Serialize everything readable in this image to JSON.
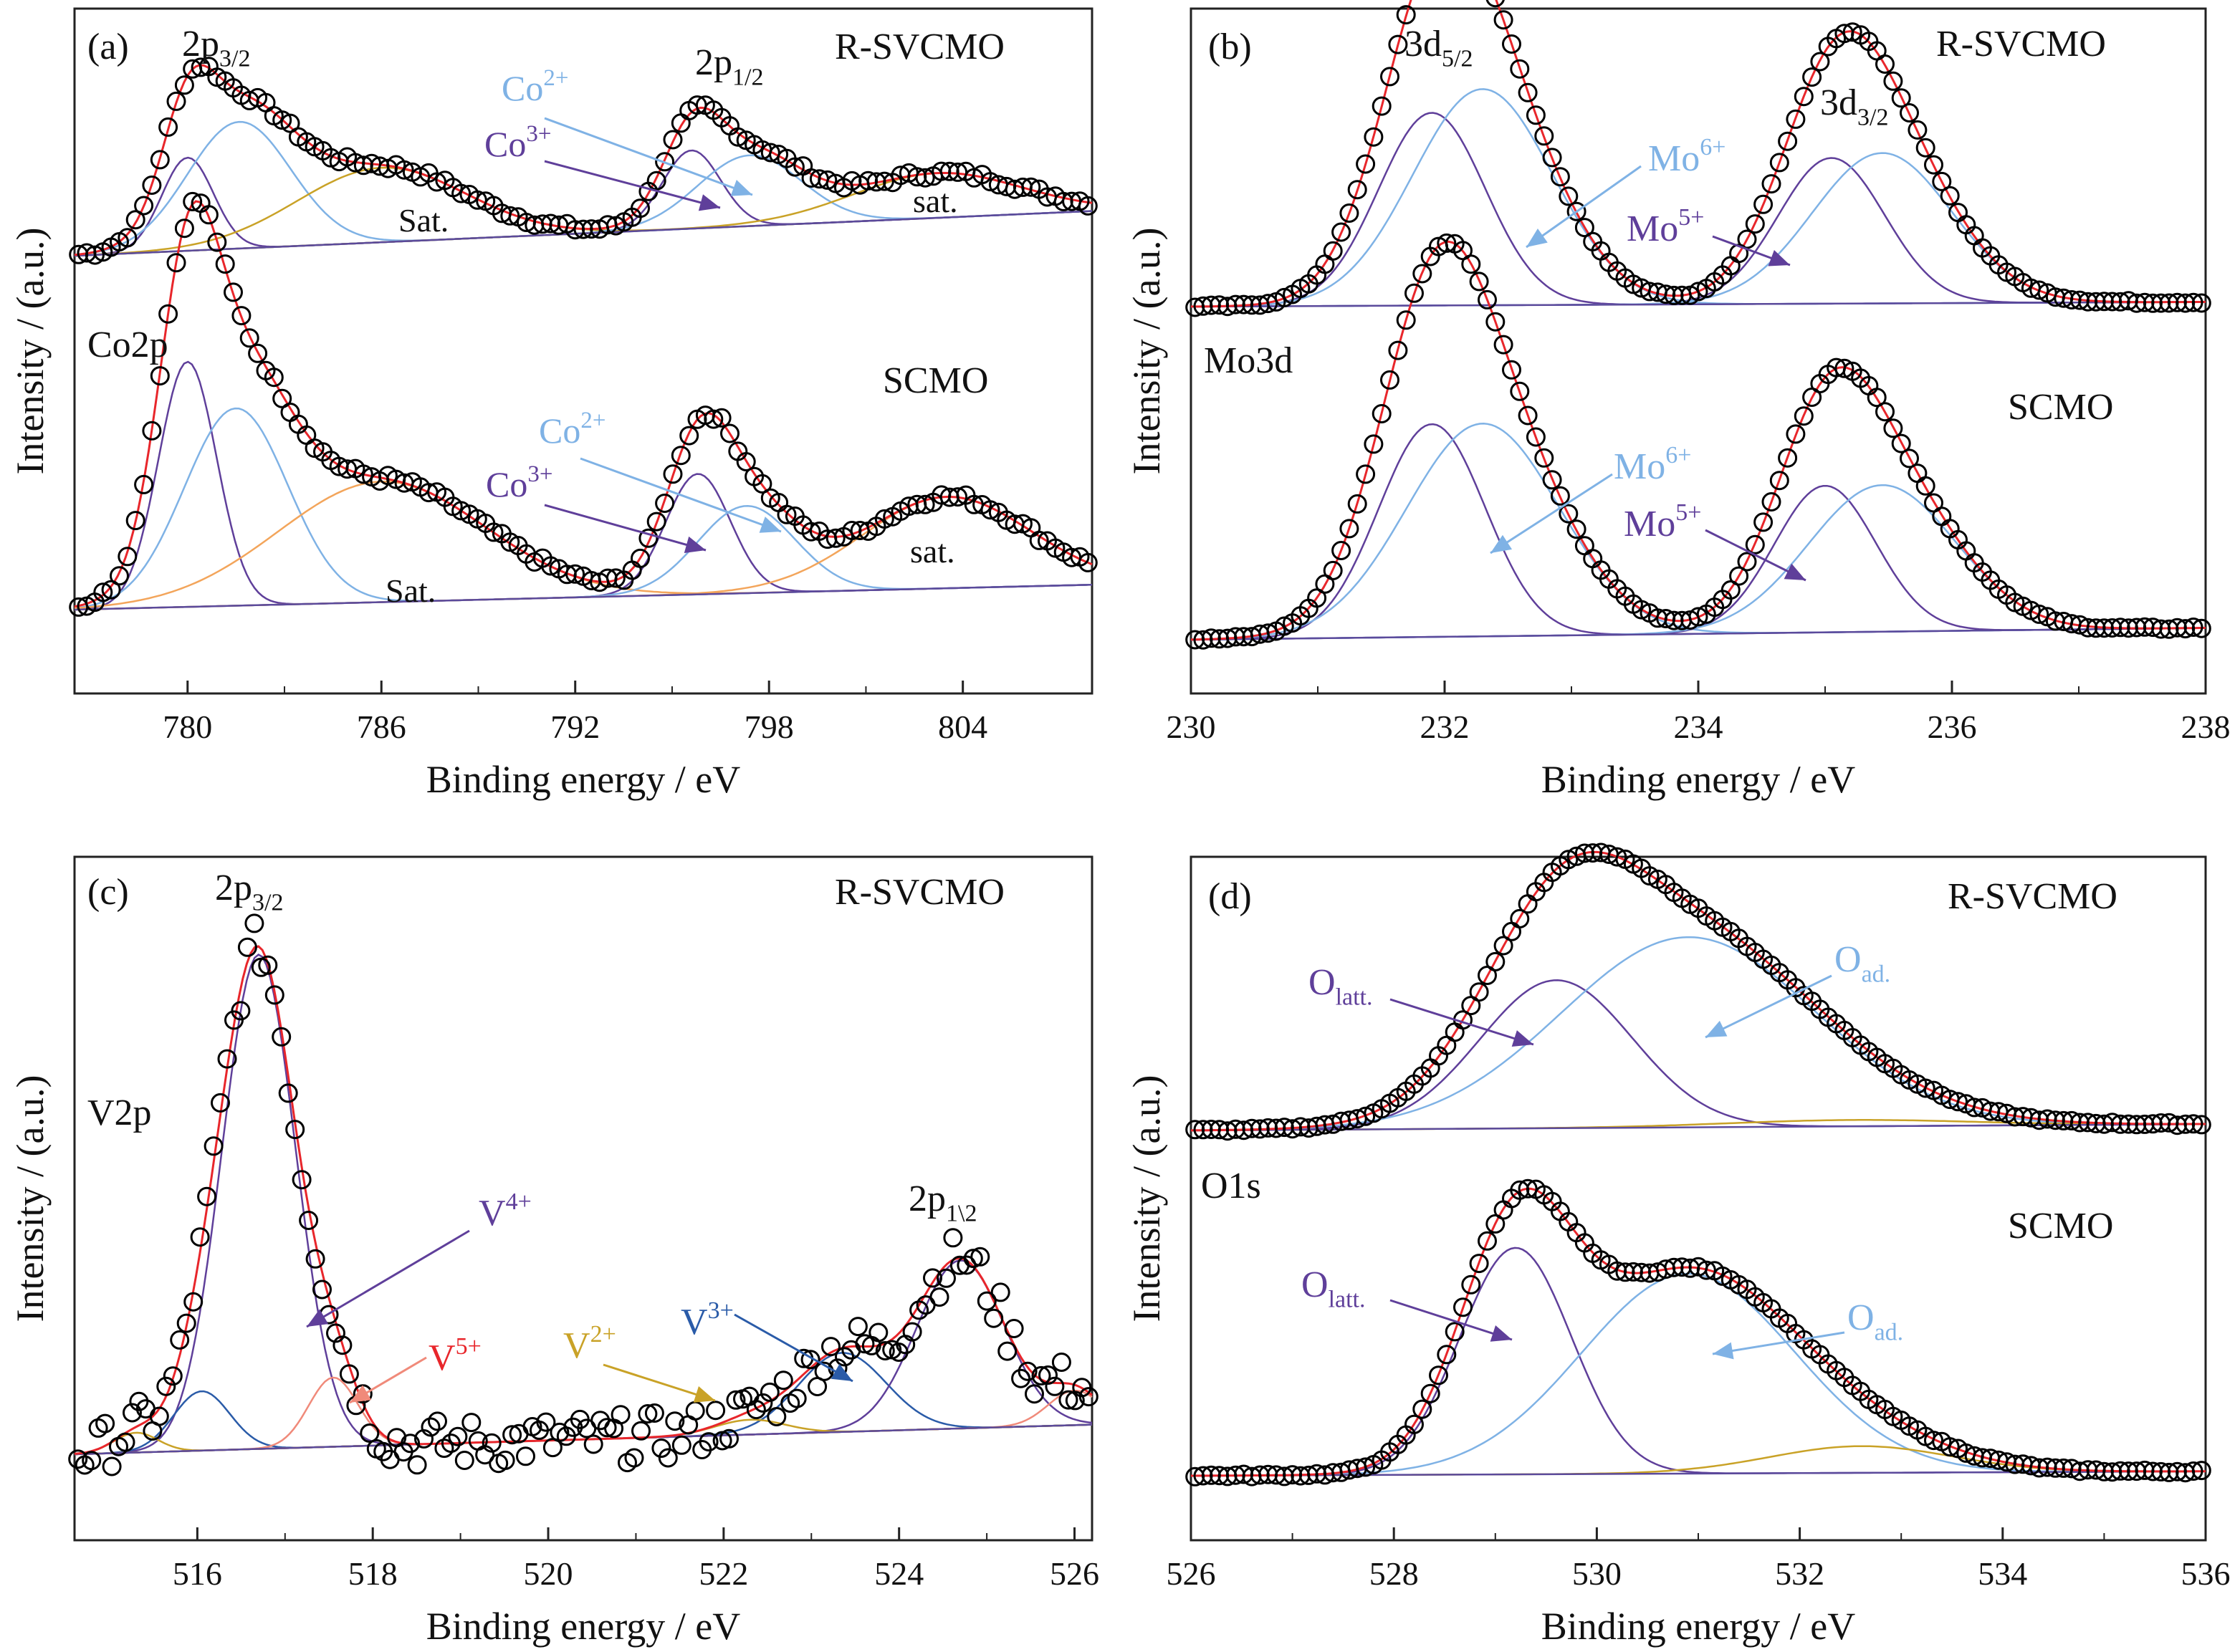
{
  "figure": {
    "y_axis_label": "Intensity / (a.u.)",
    "x_axis_label": "Binding energy / eV",
    "colors": {
      "data_markers": "#000000",
      "fit_envelope": "#e8262b",
      "purple_component": "#5f3f9a",
      "light_blue_component": "#7fb2e5",
      "dark_blue_component": "#2a5ba8",
      "gold_component": "#c9a227",
      "salmon_component": "#f08a7a",
      "orange_component": "#f3a55b",
      "baseline_purple": "#5b4a9b"
    }
  },
  "chart_data": [
    {
      "id": "a",
      "type": "scatter",
      "panel_label": "(a)",
      "element_label": "Co2p",
      "xlabel": "Binding energy / eV",
      "ylabel": "Intensity / (a.u.)",
      "xlim": [
        776.5,
        808
      ],
      "xticks": [
        780,
        786,
        792,
        798,
        804
      ],
      "spectra": [
        {
          "sample": "R-SVCMO",
          "baseline": [
            0.05,
            0.29
          ],
          "peaks": [
            {
              "label": "Co3+",
              "color": "purple",
              "center": 780.0,
              "height": 0.5,
              "width": 0.8
            },
            {
              "label": "Co2+",
              "color": "light_blue",
              "center": 781.6,
              "height": 0.68,
              "width": 1.6
            },
            {
              "label": "Sat.",
              "color": "gold",
              "center": 786.0,
              "height": 0.4,
              "width": 2.6
            },
            {
              "label": "Co3+",
              "color": "purple",
              "center": 795.6,
              "height": 0.42,
              "width": 0.9
            },
            {
              "label": "Co2+",
              "color": "light_blue",
              "center": 797.4,
              "height": 0.38,
              "width": 1.6
            },
            {
              "label": "sat.",
              "color": "gold",
              "center": 803.2,
              "height": 0.24,
              "width": 2.6
            }
          ],
          "annotations": [
            "2p3/2",
            "2p1/2",
            "Co2+",
            "Co3+",
            "Sat.",
            "sat."
          ]
        },
        {
          "sample": "SCMO",
          "baseline": [
            0.1,
            0.22
          ],
          "peaks": [
            {
              "label": "Co3+",
              "color": "purple",
              "center": 780.0,
              "height": 1.18,
              "width": 0.9
            },
            {
              "label": "Co2+",
              "color": "light_blue",
              "center": 781.5,
              "height": 0.95,
              "width": 1.6
            },
            {
              "label": "Sat.",
              "color": "orange",
              "center": 786.0,
              "height": 0.58,
              "width": 3.2
            },
            {
              "label": "Co3+",
              "color": "purple",
              "center": 795.8,
              "height": 0.58,
              "width": 1.0
            },
            {
              "label": "Co2+",
              "color": "light_blue",
              "center": 797.3,
              "height": 0.42,
              "width": 1.5
            },
            {
              "label": "sat.",
              "color": "orange",
              "center": 803.5,
              "height": 0.44,
              "width": 2.6
            }
          ],
          "annotations": [
            "Co2+",
            "Co3+",
            "Sat.",
            "sat."
          ]
        }
      ]
    },
    {
      "id": "b",
      "type": "scatter",
      "panel_label": "(b)",
      "element_label": "Mo3d",
      "xlabel": "Binding energy / eV",
      "ylabel": "Intensity / (a.u.)",
      "xlim": [
        230,
        238
      ],
      "xticks": [
        230,
        232,
        234,
        236,
        238
      ],
      "spectra": [
        {
          "sample": "R-SVCMO",
          "baseline": [
            0.0,
            0.02
          ],
          "peaks": [
            {
              "label": "Mo5+",
              "color": "purple",
              "center": 231.9,
              "height": 0.82,
              "width": 0.42
            },
            {
              "label": "Mo6+",
              "color": "light_blue",
              "center": 232.3,
              "height": 0.92,
              "width": 0.55
            },
            {
              "label": "Mo5+",
              "color": "purple",
              "center": 235.05,
              "height": 0.62,
              "width": 0.42
            },
            {
              "label": "Mo6+",
              "color": "light_blue",
              "center": 235.45,
              "height": 0.64,
              "width": 0.55
            }
          ],
          "annotations": [
            "3d5/2",
            "3d3/2",
            "Mo6+",
            "Mo5+"
          ]
        },
        {
          "sample": "SCMO",
          "baseline": [
            0.0,
            0.05
          ],
          "peaks": [
            {
              "label": "Mo5+",
              "color": "purple",
              "center": 231.9,
              "height": 0.9,
              "width": 0.42
            },
            {
              "label": "Mo6+",
              "color": "light_blue",
              "center": 232.3,
              "height": 0.9,
              "width": 0.6
            },
            {
              "label": "Mo5+",
              "color": "purple",
              "center": 235.0,
              "height": 0.62,
              "width": 0.4
            },
            {
              "label": "Mo6+",
              "color": "light_blue",
              "center": 235.45,
              "height": 0.62,
              "width": 0.58
            }
          ],
          "annotations": [
            "Mo6+",
            "Mo5+"
          ]
        }
      ]
    },
    {
      "id": "c",
      "type": "scatter",
      "panel_label": "(c)",
      "element_label": "V2p",
      "xlabel": "Binding energy / eV",
      "ylabel": "Intensity / (a.u.)",
      "xlim": [
        514.6,
        526.2
      ],
      "xticks": [
        516,
        518,
        520,
        522,
        524,
        526
      ],
      "spectra": [
        {
          "sample": "R-SVCMO",
          "baseline": [
            0.0,
            0.06
          ],
          "peaks": [
            {
              "label": "V4+",
              "color": "purple",
              "center": 516.7,
              "height": 1.0,
              "width": 0.42
            },
            {
              "label": "V3+",
              "color": "dark_blue",
              "center": 516.05,
              "height": 0.12,
              "width": 0.32
            },
            {
              "label": "V5+",
              "color": "salmon",
              "center": 517.55,
              "height": 0.14,
              "width": 0.28
            },
            {
              "label": "V2+",
              "color": "gold",
              "center": 515.3,
              "height": 0.04,
              "width": 0.25
            },
            {
              "label": "V3+",
              "color": "dark_blue",
              "center": 523.35,
              "height": 0.16,
              "width": 0.5
            },
            {
              "label": "V4+",
              "color": "purple",
              "center": 524.7,
              "height": 0.34,
              "width": 0.5
            },
            {
              "label": "V5+",
              "color": "salmon",
              "center": 526.0,
              "height": 0.07,
              "width": 0.3
            },
            {
              "label": "V2+",
              "color": "gold",
              "center": 522.3,
              "height": 0.03,
              "width": 0.4
            }
          ],
          "annotations": [
            "2p3/2",
            "2p1\\2",
            "V4+",
            "V5+",
            "V2+",
            "V3+"
          ]
        }
      ]
    },
    {
      "id": "d",
      "type": "scatter",
      "panel_label": "(d)",
      "element_label": "O1s",
      "xlabel": "Binding energy / eV",
      "ylabel": "Intensity / (a.u.)",
      "xlim": [
        526,
        536
      ],
      "xticks": [
        526,
        528,
        530,
        532,
        534,
        536
      ],
      "spectra": [
        {
          "sample": "R-SVCMO",
          "baseline": [
            0.0,
            0.03
          ],
          "peaks": [
            {
              "label": "Olatt.",
              "color": "purple",
              "center": 529.6,
              "height": 0.7,
              "width": 0.75
            },
            {
              "label": "Oad.",
              "color": "light_blue",
              "center": 530.9,
              "height": 0.9,
              "width": 1.25
            },
            {
              "label": "",
              "color": "gold",
              "center": 532.5,
              "height": 0.03,
              "width": 1.2
            }
          ],
          "annotations": [
            "Olatt.",
            "Oad."
          ]
        },
        {
          "sample": "SCMO",
          "baseline": [
            0.0,
            0.02
          ],
          "peaks": [
            {
              "label": "Olatt.",
              "color": "purple",
              "center": 529.2,
              "height": 1.02,
              "width": 0.55
            },
            {
              "label": "Oad.",
              "color": "light_blue",
              "center": 530.9,
              "height": 0.9,
              "width": 1.05
            },
            {
              "label": "",
              "color": "gold",
              "center": 532.6,
              "height": 0.12,
              "width": 0.9
            }
          ],
          "annotations": [
            "Olatt.",
            "Oad."
          ]
        }
      ]
    }
  ]
}
